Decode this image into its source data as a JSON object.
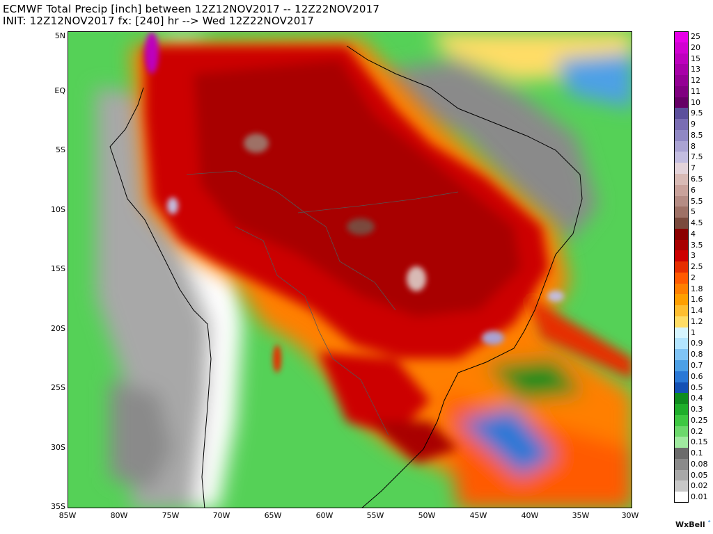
{
  "header": {
    "title_line1": "ECMWF Total Precip [inch] between 12Z12NOV2017 -- 12Z22NOV2017",
    "title_line2": "INIT: 12Z12NOV2017 fx: [240] hr --> Wed 12Z22NOV2017"
  },
  "map": {
    "lat_labels": [
      "5N",
      "EQ",
      "5S",
      "10S",
      "15S",
      "20S",
      "25S",
      "30S",
      "35S"
    ],
    "lon_labels": [
      "85W",
      "80W",
      "75W",
      "70W",
      "65W",
      "60W",
      "55W",
      "50W",
      "45W",
      "40W",
      "35W",
      "30W"
    ],
    "extent": {
      "lon_min": -85,
      "lon_max": -30,
      "lat_min": -35,
      "lat_max": 5
    }
  },
  "legend": {
    "levels": [
      "25",
      "20",
      "15",
      "13",
      "12",
      "11",
      "10",
      "9.5",
      "9",
      "8.5",
      "8",
      "7.5",
      "7",
      "6.5",
      "6",
      "5.5",
      "5",
      "4.5",
      "4",
      "3.5",
      "3",
      "2.5",
      "2",
      "1.8",
      "1.6",
      "1.4",
      "1.2",
      "1",
      "0.9",
      "0.8",
      "0.7",
      "0.6",
      "0.5",
      "0.4",
      "0.3",
      "0.25",
      "0.2",
      "0.15",
      "0.1",
      "0.08",
      "0.05",
      "0.02",
      "0.01"
    ],
    "colors": [
      "#e600e6",
      "#d100d1",
      "#bd00bd",
      "#a800a8",
      "#940094",
      "#800080",
      "#660066",
      "#5c4f9c",
      "#7a6db3",
      "#9088c4",
      "#aaa3d3",
      "#c3bde0",
      "#e3d3da",
      "#d8bab5",
      "#c9a29b",
      "#b58c84",
      "#9e7166",
      "#7a4a3d",
      "#8b0000",
      "#a80000",
      "#cc0000",
      "#e62e00",
      "#ff5a00",
      "#ff7f00",
      "#ff9f00",
      "#ffbe2f",
      "#ffdd66",
      "#d6f5ff",
      "#b3e5ff",
      "#80c4f5",
      "#4da0e6",
      "#2a78d6",
      "#1450b4",
      "#0f8c1e",
      "#1fae2b",
      "#3ec842",
      "#6cd96c",
      "#a0eaa0",
      "#6b6b6b",
      "#8a8a8a",
      "#a8a8a8",
      "#c8c8c8",
      "#ffffff"
    ]
  },
  "brand": {
    "name": "WxBell",
    "mark": "°"
  }
}
